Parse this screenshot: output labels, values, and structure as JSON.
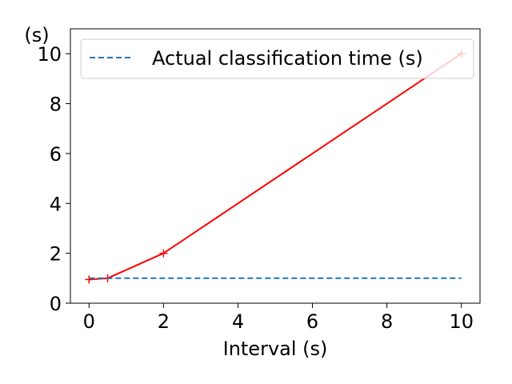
{
  "chart_data": {
    "type": "line",
    "title": "",
    "xlabel": "Interval (s)",
    "ylabel": "(s)",
    "xlim": [
      -0.5,
      10.5
    ],
    "ylim": [
      0,
      11
    ],
    "x_ticks": [
      0,
      2,
      4,
      6,
      8,
      10
    ],
    "y_ticks": [
      0,
      2,
      4,
      6,
      8,
      10
    ],
    "grid": false,
    "legend_position": "top-right",
    "series": [
      {
        "style": "solid",
        "marker": "+",
        "color": "#ff0000",
        "x": [
          0,
          0.5,
          2,
          10
        ],
        "y": [
          0.95,
          1.0,
          2.0,
          10.0
        ]
      },
      {
        "name": "Actual classification time (s)",
        "style": "dashed",
        "color": "#1f77b4",
        "x": [
          0,
          10
        ],
        "y": [
          1.0,
          1.0
        ]
      }
    ]
  }
}
